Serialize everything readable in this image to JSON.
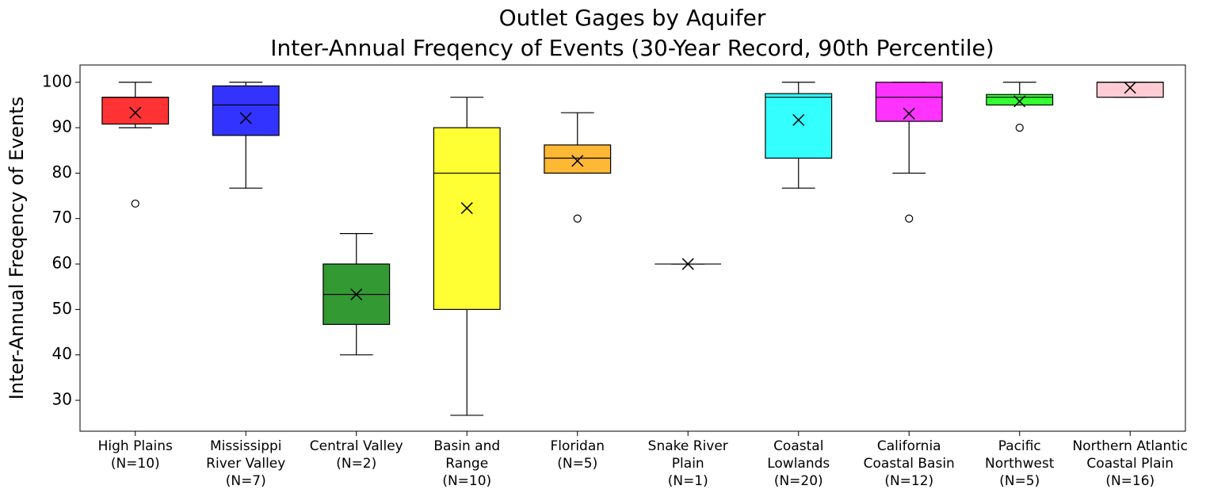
{
  "chart_data": {
    "type": "box",
    "title": "Outlet Gages by Aquifer",
    "subtitle": "Inter-Annual Freqency of Events (30-Year Record, 90th Percentile)",
    "y_label": "Inter-Annual Freqency of Events",
    "categories": [
      "High Plains\n(N=10)",
      "Mississippi\nRiver Valley\n(N=7)",
      "Central Valley\n(N=2)",
      "Basin and\nRange\n(N=10)",
      "Floridan\n(N=5)",
      "Snake River\nPlain\n(N=1)",
      "Coastal\nLowlands\n(N=20)",
      "California\nCoastal Basin\n(N=12)",
      "Pacific\nNorthwest\n(N=5)",
      "Northern Atlantic\nCoastal Plain\n(N=16)"
    ],
    "boxes": [
      {
        "whislo": 90,
        "q1": 90.8,
        "med": 96.7,
        "q3": 96.7,
        "whishi": 100,
        "mean": 93.3,
        "fliers": [
          73.3
        ],
        "color": "#ff3333"
      },
      {
        "whislo": 76.7,
        "q1": 88.3,
        "med": 95,
        "q3": 99.2,
        "whishi": 100,
        "mean": 92.1,
        "fliers": [],
        "color": "#3333ff"
      },
      {
        "whislo": 40,
        "q1": 46.7,
        "med": 53.3,
        "q3": 60,
        "whishi": 66.7,
        "mean": 53.3,
        "fliers": [],
        "color": "#339933"
      },
      {
        "whislo": 26.7,
        "q1": 50,
        "med": 80,
        "q3": 90,
        "whishi": 96.7,
        "mean": 72.3,
        "fliers": [],
        "color": "#ffff33"
      },
      {
        "whislo": 80,
        "q1": 80,
        "med": 83.3,
        "q3": 86.2,
        "whishi": 93.3,
        "mean": 82.7,
        "fliers": [
          70
        ],
        "color": "#ffb833"
      },
      {
        "whislo": 60,
        "q1": 60,
        "med": 60,
        "q3": 60,
        "whishi": 60,
        "mean": 60,
        "fliers": [],
        "color": "#cc99cc"
      },
      {
        "whislo": 76.7,
        "q1": 83.3,
        "med": 96.7,
        "q3": 97.5,
        "whishi": 100,
        "mean": 91.7,
        "fliers": [],
        "color": "#33ffff"
      },
      {
        "whislo": 80,
        "q1": 91.4,
        "med": 96.7,
        "q3": 100,
        "whishi": 100,
        "mean": 93.1,
        "fliers": [
          70
        ],
        "color": "#ff33ff"
      },
      {
        "whislo": 95,
        "q1": 95,
        "med": 96.7,
        "q3": 97.3,
        "whishi": 100,
        "mean": 95.8,
        "fliers": [
          90
        ],
        "color": "#33ff33"
      },
      {
        "whislo": 96.7,
        "q1": 96.7,
        "med": 100,
        "q3": 100,
        "whishi": 100,
        "mean": 98.8,
        "fliers": [],
        "color": "#ffccd3"
      }
    ],
    "ylim": [
      23.2,
      103.8
    ],
    "yticks": [
      30,
      40,
      50,
      60,
      70,
      80,
      90,
      100
    ]
  }
}
